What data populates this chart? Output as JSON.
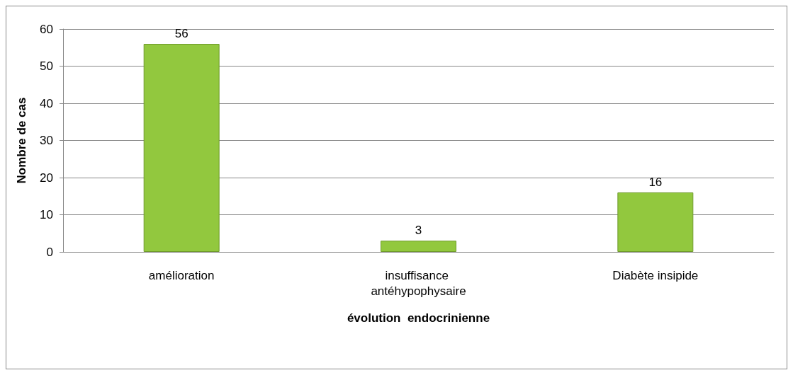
{
  "chart_data": {
    "type": "bar",
    "xlabel": "évolution  endocrinienne",
    "ylabel": "Nombre de cas",
    "categories": [
      "amélioration",
      "insuffisance antéhypophysaire",
      "Diabète insipide"
    ],
    "values": [
      56,
      3,
      16
    ],
    "color": "#92c83e",
    "ylim": [
      0,
      60
    ],
    "yticks": [
      0,
      10,
      20,
      30,
      40,
      50,
      60
    ],
    "grid": "y",
    "data_labels": true
  }
}
